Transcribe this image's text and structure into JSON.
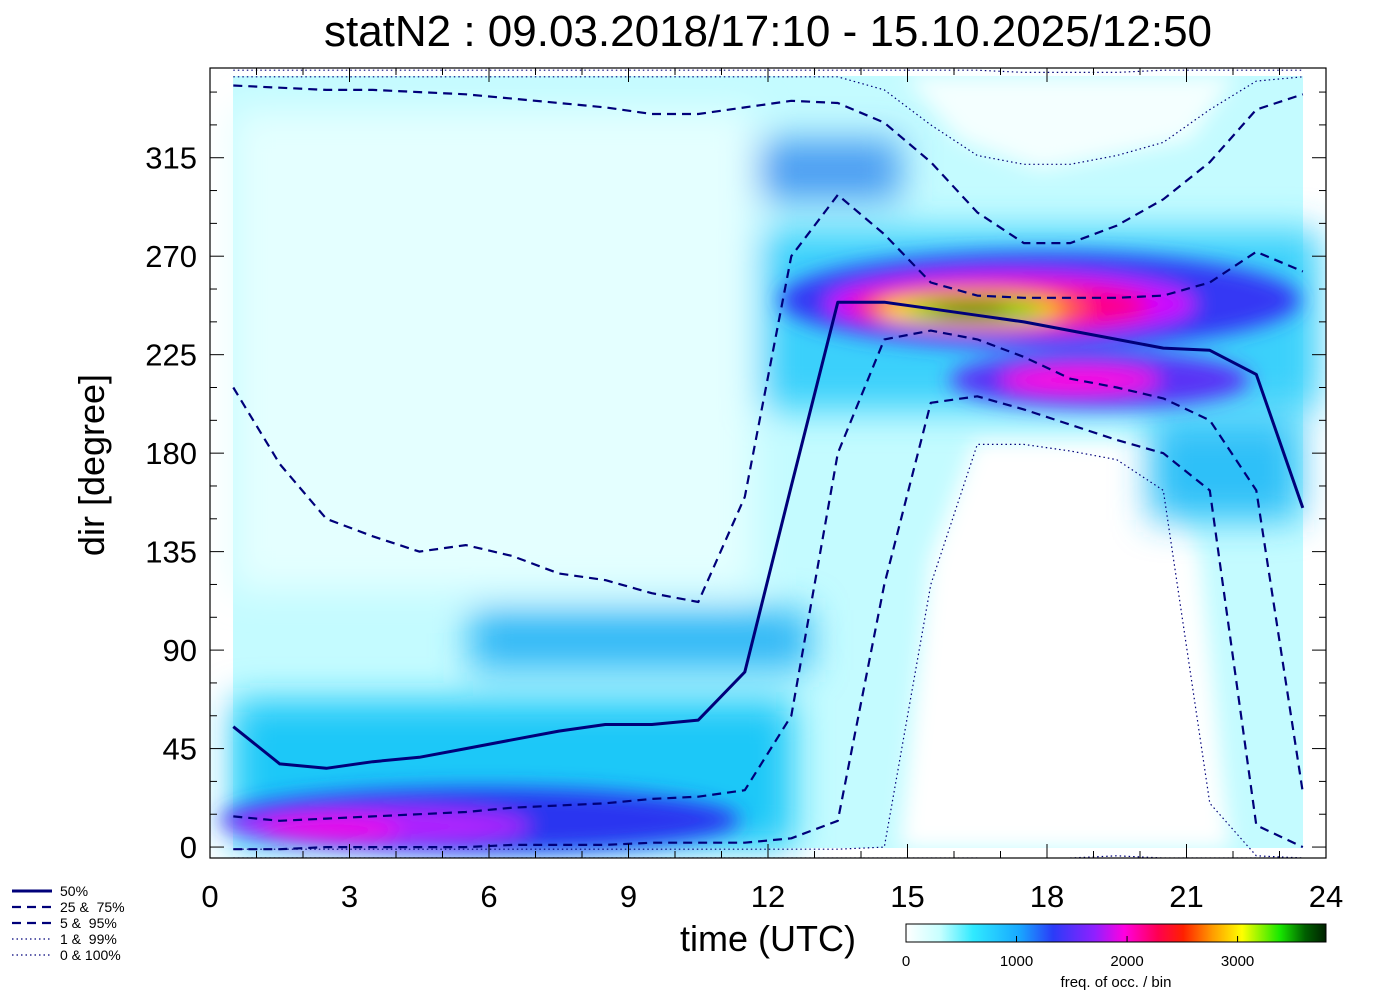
{
  "chart_data": {
    "type": "heatmap",
    "title": "statN2 : 09.03.2018/17:10 - 15.10.2025/12:50",
    "xlabel": "time (UTC)",
    "ylabel": "dir [degree]",
    "xlim": [
      0,
      24
    ],
    "ylim": [
      0,
      360
    ],
    "xticks": [
      "0",
      "3",
      "6",
      "9",
      "12",
      "15",
      "18",
      "21",
      "24"
    ],
    "xtick_values": [
      0,
      3,
      6,
      9,
      12,
      15,
      18,
      21,
      24
    ],
    "yticks": [
      "0",
      "45",
      "90",
      "135",
      "180",
      "225",
      "270",
      "315"
    ],
    "ytick_values": [
      0,
      45,
      90,
      135,
      180,
      225,
      270,
      315
    ],
    "grid": false,
    "legend_position": "bottom-left",
    "colorbar": {
      "label": "freq. of occ. / bin",
      "ticks": [
        "0",
        "1000",
        "2000",
        "3000"
      ],
      "tick_values": [
        0,
        1000,
        2000,
        3000
      ],
      "max": 3800
    },
    "hours": [
      0.5,
      1.5,
      2.5,
      3.5,
      4.5,
      5.5,
      6.5,
      7.5,
      8.5,
      9.5,
      10.5,
      11.5,
      12.5,
      13.5,
      14.5,
      15.5,
      16.5,
      17.5,
      18.5,
      19.5,
      20.5,
      21.5,
      22.5,
      23.5
    ],
    "series": [
      {
        "name": "50%",
        "style": "solid",
        "values": [
          55,
          38,
          36,
          39,
          41,
          45,
          49,
          53,
          56,
          56,
          58,
          80,
          165,
          249,
          249,
          246,
          243,
          240,
          236,
          232,
          228,
          227,
          216,
          155
        ]
      },
      {
        "name": "25 &  75%",
        "style": "dashed",
        "values": [
          14,
          12,
          13,
          14,
          15,
          16,
          18,
          19,
          20,
          22,
          23,
          26,
          60,
          180,
          232,
          236,
          232,
          224,
          214,
          210,
          205,
          195,
          163,
          25
        ]
      },
      {
        "name": "25 &  75%",
        "style": "dashed",
        "values": [
          210,
          175,
          150,
          142,
          135,
          138,
          133,
          125,
          122,
          116,
          112,
          160,
          270,
          298,
          280,
          258,
          252,
          251,
          251,
          251,
          252,
          258,
          272,
          263
        ]
      },
      {
        "name": "5 &  95%",
        "style": "dashed",
        "values": [
          -1,
          -1,
          0,
          0,
          0,
          0,
          1,
          1,
          1,
          2,
          2,
          2,
          4,
          12,
          120,
          203,
          206,
          200,
          193,
          186,
          180,
          163,
          10,
          0
        ]
      },
      {
        "name": "5 &  95%",
        "style": "dashed",
        "values": [
          348,
          347,
          346,
          346,
          345,
          344,
          342,
          340,
          338,
          335,
          335,
          338,
          341,
          340,
          331,
          313,
          290,
          276,
          276,
          284,
          296,
          313,
          337,
          344
        ]
      },
      {
        "name": "1 &  99%",
        "style": "dotted",
        "values": [
          -1,
          -1,
          -1,
          -1,
          -1,
          -1,
          -1,
          -1,
          -1,
          -1,
          -1,
          -1,
          -1,
          -1,
          0,
          120,
          184,
          184,
          181,
          177,
          163,
          20,
          -4,
          -5
        ]
      },
      {
        "name": "1 &  99%",
        "style": "dotted",
        "values": [
          352,
          352,
          352,
          352,
          352,
          352,
          352,
          352,
          352,
          352,
          352,
          352,
          352,
          352,
          346,
          330,
          316,
          312,
          312,
          316,
          322,
          337,
          350,
          352
        ]
      },
      {
        "name": "0 & 100%",
        "style": "dotted",
        "values": [
          -5,
          -5,
          -5,
          -5,
          -5,
          -5,
          -5,
          -5,
          -5,
          -5,
          -5,
          -5,
          -5,
          -5,
          -5,
          -5,
          -5,
          -6,
          -5,
          -4,
          -5,
          -5,
          -5,
          -5
        ]
      },
      {
        "name": "0 & 100%",
        "style": "dotted",
        "values": [
          355,
          355,
          355,
          355,
          355,
          355,
          355,
          355,
          355,
          355,
          355,
          355,
          355,
          355,
          355,
          355,
          355,
          354,
          354,
          354,
          355,
          355,
          355,
          355
        ]
      }
    ],
    "heatmap_hotspots": [
      {
        "hour": 16.3,
        "dir": 248,
        "freq": 3600
      },
      {
        "hour": 18.2,
        "dir": 246,
        "freq": 2600
      },
      {
        "hour": 15.0,
        "dir": 248,
        "freq": 2200
      },
      {
        "hour": 19.8,
        "dir": 214,
        "freq": 1900
      },
      {
        "hour": 20.5,
        "dir": 248,
        "freq": 1500
      },
      {
        "hour": 3.0,
        "dir": 15,
        "freq": 1700
      },
      {
        "hour": 6.5,
        "dir": 15,
        "freq": 1500
      },
      {
        "hour": 9.5,
        "dir": 16,
        "freq": 1200
      },
      {
        "hour": 13.8,
        "dir": 310,
        "freq": 750
      },
      {
        "hour": 11.0,
        "dir": 95,
        "freq": 650
      },
      {
        "hour": 21.8,
        "dir": 200,
        "freq": 700
      }
    ]
  },
  "legend": {
    "items": [
      {
        "label": "50%",
        "style": "solid"
      },
      {
        "label": "25 &  75%",
        "style": "dashed"
      },
      {
        "label": "5 &  95%",
        "style": "dashed"
      },
      {
        "label": "1 &  99%",
        "style": "dotted"
      },
      {
        "label": "0 & 100%",
        "style": "dotted"
      }
    ]
  },
  "colors": {
    "line": "#00007a",
    "low_freq": "#e6ffff",
    "mid_freq": "#3a38f0",
    "high_freq": "#ff0060",
    "peak_freq": "#002800"
  }
}
